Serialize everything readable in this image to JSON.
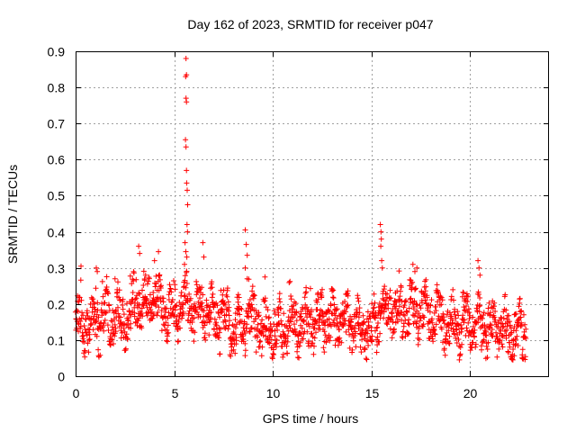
{
  "chart_data": {
    "type": "scatter",
    "title": "Day 162 of 2023, SRMTID for receiver p047",
    "xlabel": "GPS time / hours",
    "ylabel": "SRMTID / TECUs",
    "xlim": [
      0,
      24
    ],
    "ylim": [
      0,
      0.9
    ],
    "x_ticks": [
      0,
      5,
      10,
      15,
      20
    ],
    "x_tick_labels": [
      "0",
      "5",
      "10",
      "15",
      "20"
    ],
    "y_ticks": [
      0,
      0.1,
      0.2,
      0.3,
      0.4,
      0.5,
      0.6,
      0.7,
      0.8,
      0.9
    ],
    "y_tick_labels": [
      "0",
      "0.1",
      "0.2",
      "0.3",
      "0.4",
      "0.5",
      "0.6",
      "0.7",
      "0.8",
      "0.9"
    ],
    "grid": true,
    "marker": "plus",
    "color": "#ff0000",
    "baseline": [
      [
        0.0,
        0.15
      ],
      [
        0.5,
        0.14
      ],
      [
        1.0,
        0.15
      ],
      [
        1.5,
        0.16
      ],
      [
        2.0,
        0.16
      ],
      [
        2.5,
        0.15
      ],
      [
        3.0,
        0.2
      ],
      [
        3.5,
        0.21
      ],
      [
        4.0,
        0.21
      ],
      [
        4.5,
        0.19
      ],
      [
        5.0,
        0.17
      ],
      [
        5.5,
        0.2
      ],
      [
        6.0,
        0.19
      ],
      [
        6.5,
        0.18
      ],
      [
        7.0,
        0.17
      ],
      [
        7.5,
        0.16
      ],
      [
        8.0,
        0.14
      ],
      [
        8.5,
        0.15
      ],
      [
        9.0,
        0.16
      ],
      [
        9.5,
        0.13
      ],
      [
        10.0,
        0.13
      ],
      [
        10.5,
        0.12
      ],
      [
        11.0,
        0.15
      ],
      [
        11.5,
        0.14
      ],
      [
        12.0,
        0.15
      ],
      [
        12.5,
        0.16
      ],
      [
        13.0,
        0.15
      ],
      [
        13.5,
        0.16
      ],
      [
        14.0,
        0.15
      ],
      [
        14.5,
        0.12
      ],
      [
        15.0,
        0.13
      ],
      [
        15.5,
        0.17
      ],
      [
        16.0,
        0.19
      ],
      [
        16.5,
        0.17
      ],
      [
        17.0,
        0.19
      ],
      [
        17.5,
        0.18
      ],
      [
        18.0,
        0.18
      ],
      [
        18.5,
        0.15
      ],
      [
        19.0,
        0.14
      ],
      [
        19.5,
        0.14
      ],
      [
        20.0,
        0.15
      ],
      [
        20.5,
        0.13
      ],
      [
        21.0,
        0.14
      ],
      [
        21.5,
        0.13
      ],
      [
        22.0,
        0.12
      ],
      [
        22.5,
        0.12
      ],
      [
        22.85,
        0.11
      ]
    ],
    "spikes": [
      {
        "x": 5.6,
        "y": 0.88
      },
      {
        "x": 5.62,
        "y": 0.835
      },
      {
        "x": 5.58,
        "y": 0.83
      },
      {
        "x": 5.6,
        "y": 0.77
      },
      {
        "x": 5.62,
        "y": 0.76
      },
      {
        "x": 5.57,
        "y": 0.655
      },
      {
        "x": 5.6,
        "y": 0.635
      },
      {
        "x": 5.62,
        "y": 0.57
      },
      {
        "x": 5.63,
        "y": 0.535
      },
      {
        "x": 5.66,
        "y": 0.515
      },
      {
        "x": 5.68,
        "y": 0.475
      },
      {
        "x": 5.65,
        "y": 0.42
      },
      {
        "x": 5.67,
        "y": 0.4
      },
      {
        "x": 5.55,
        "y": 0.37
      },
      {
        "x": 5.59,
        "y": 0.345
      },
      {
        "x": 5.64,
        "y": 0.33
      },
      {
        "x": 5.52,
        "y": 0.31
      },
      {
        "x": 6.45,
        "y": 0.37
      },
      {
        "x": 6.5,
        "y": 0.33
      },
      {
        "x": 8.6,
        "y": 0.405
      },
      {
        "x": 8.65,
        "y": 0.365
      },
      {
        "x": 8.7,
        "y": 0.335
      },
      {
        "x": 8.6,
        "y": 0.3
      },
      {
        "x": 8.7,
        "y": 0.27
      },
      {
        "x": 15.45,
        "y": 0.42
      },
      {
        "x": 15.48,
        "y": 0.4
      },
      {
        "x": 15.5,
        "y": 0.38
      },
      {
        "x": 15.47,
        "y": 0.36
      },
      {
        "x": 15.52,
        "y": 0.32
      },
      {
        "x": 15.55,
        "y": 0.3
      },
      {
        "x": 3.2,
        "y": 0.36
      },
      {
        "x": 3.25,
        "y": 0.34
      },
      {
        "x": 4.2,
        "y": 0.345
      },
      {
        "x": 4.0,
        "y": 0.32
      },
      {
        "x": 1.05,
        "y": 0.3
      },
      {
        "x": 1.1,
        "y": 0.29
      },
      {
        "x": 17.1,
        "y": 0.31
      },
      {
        "x": 17.3,
        "y": 0.3
      },
      {
        "x": 17.2,
        "y": 0.29
      },
      {
        "x": 20.4,
        "y": 0.32
      },
      {
        "x": 20.45,
        "y": 0.3
      },
      {
        "x": 20.5,
        "y": 0.28
      },
      {
        "x": 9.6,
        "y": 0.275
      },
      {
        "x": 2.0,
        "y": 0.27
      },
      {
        "x": 12.5,
        "y": 0.24
      }
    ],
    "series_summary": "Dense scatter of SRMTID values from 0 to ~22.9 hours, mostly between 0.05 and 0.3 TECUs, with a peak of ~0.88 near 5.6 h and secondary peaks ~0.41 near 8.6 h and ~0.42 near 15.5 h."
  }
}
